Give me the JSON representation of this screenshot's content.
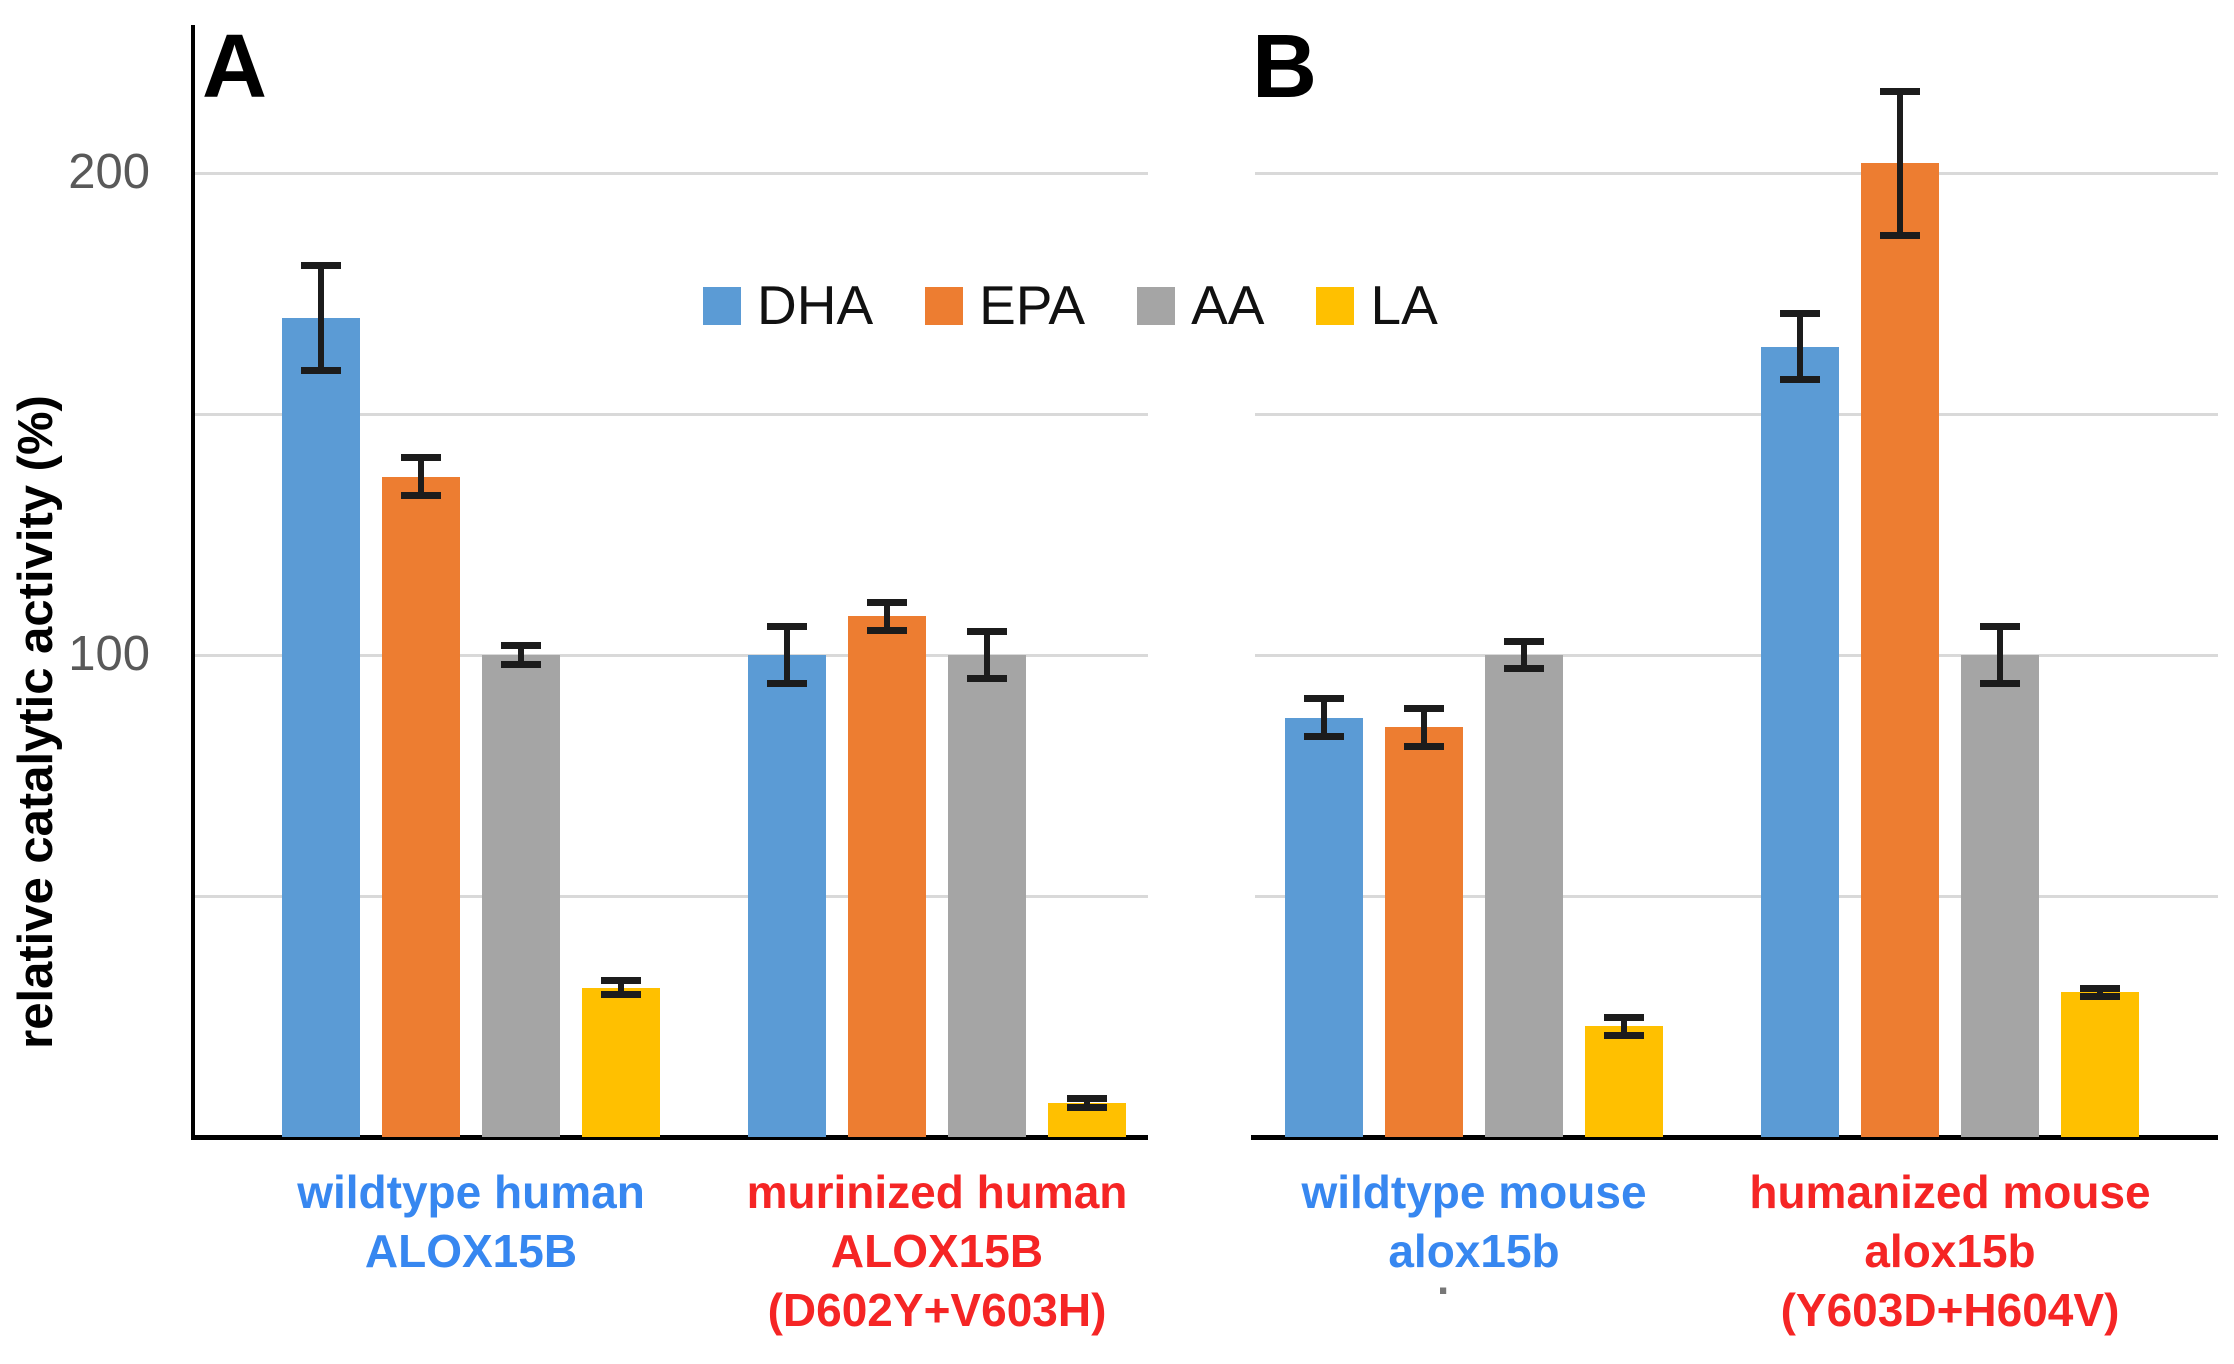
{
  "figure": {
    "background": "#ffffff",
    "stray_period": ".",
    "y_ticks": [
      {
        "value": 200,
        "label": "200"
      },
      {
        "value": 100,
        "label": "100"
      }
    ]
  },
  "chart_data": {
    "type": "bar",
    "title": "",
    "ylabel": "relative catalytic activity (%)",
    "ylim": [
      0,
      230
    ],
    "grid": true,
    "gridlines": [
      50,
      100,
      150,
      200
    ],
    "labeled_ticks": [
      100,
      200
    ],
    "legend_position": "top-center",
    "error_bars": true,
    "error_bar_color": "#1c1c1c",
    "axis_color": "#000000",
    "gridline_color": "#D9D9D9",
    "series": [
      {
        "name": "DHA",
        "color": "#5B9BD5"
      },
      {
        "name": "EPA",
        "color": "#ED7D31"
      },
      {
        "name": "AA",
        "color": "#A5A5A5"
      },
      {
        "name": "LA",
        "color": "#FFC000"
      }
    ],
    "panels": [
      {
        "letter": "A",
        "groups": [
          {
            "label_lines": [
              "wildtype human",
              "ALOX15B",
              ""
            ],
            "label_color": "#3787F0",
            "values": [
              170,
              137,
              100,
              31
            ],
            "errors": [
              11,
              4,
              2,
              1.5
            ]
          },
          {
            "label_lines": [
              "murinized human",
              "ALOX15B",
              "(D602Y+V603H)"
            ],
            "label_color": "#F52525",
            "values": [
              100,
              108,
              100,
              7
            ],
            "errors": [
              6,
              3,
              5,
              1
            ]
          }
        ]
      },
      {
        "letter": "B",
        "groups": [
          {
            "label_lines": [
              "wildtype mouse",
              "alox15b",
              ""
            ],
            "label_color": "#3787F0",
            "values": [
              87,
              85,
              100,
              23
            ],
            "errors": [
              4,
              4,
              3,
              2
            ]
          },
          {
            "label_lines": [
              "humanized mouse",
              "alox15b",
              "(Y603D+H604V)"
            ],
            "label_color": "#F52525",
            "values": [
              164,
              202,
              100,
              30
            ],
            "errors": [
              7,
              15,
              6,
              1
            ]
          }
        ]
      }
    ]
  }
}
